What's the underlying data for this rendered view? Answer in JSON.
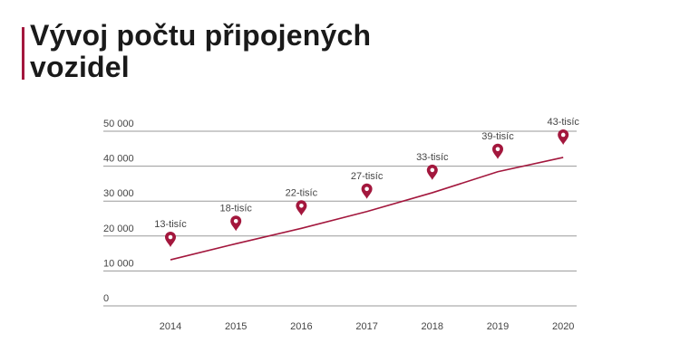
{
  "header": {
    "title_line1": "Vývoj počtu připojených",
    "title_line2": "vozidel"
  },
  "colors": {
    "accent": "#a3173d",
    "grid": "#999999",
    "text": "#444444"
  },
  "chart_data": {
    "type": "line",
    "title": "Vývoj počtu připojených vozidel",
    "xlabel": "",
    "ylabel": "",
    "categories": [
      "2014",
      "2015",
      "2016",
      "2017",
      "2018",
      "2019",
      "2020"
    ],
    "values": [
      13200,
      17800,
      22200,
      27000,
      32400,
      38400,
      42500
    ],
    "data_labels": [
      "13-tisíc",
      "18-tisíc",
      "22-tisíc",
      "27-tisíc",
      "33-tisíc",
      "39-tisíc",
      "43-tisíc"
    ],
    "marker_icon": "map-pin-icon",
    "ylim": [
      0,
      50000
    ],
    "yticks": [
      0,
      10000,
      20000,
      30000,
      40000,
      50000
    ],
    "ytick_labels": [
      "0",
      "10 000",
      "20 000",
      "30 000",
      "40 000",
      "50 000"
    ],
    "grid": true,
    "legend": "none"
  }
}
